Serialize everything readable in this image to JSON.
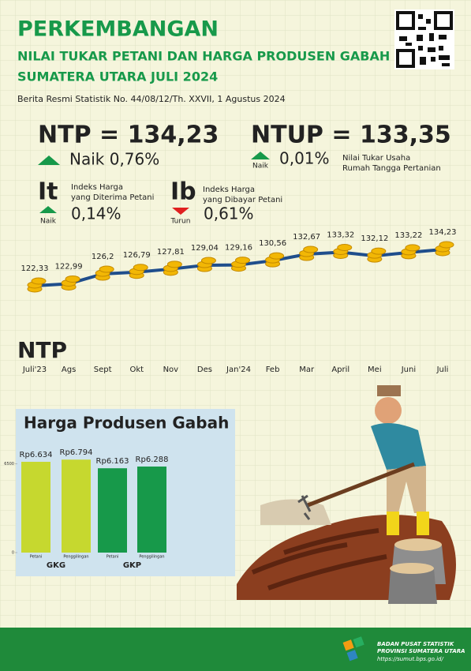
{
  "header": {
    "title": "PERKEMBANGAN",
    "subtitle1": "NILAI TUKAR PETANI DAN HARGA PRODUSEN GABAH",
    "subtitle2": "SUMATERA UTARA JULI 2024",
    "release": "Berita Resmi Statistik No. 44/08/12/Th. XXVII, 1 Agustus 2024"
  },
  "indicators": {
    "ntp": {
      "label": "NTP = 134,23",
      "change": "Naik 0,76%"
    },
    "ntup": {
      "label": "NTUP = 133,35",
      "direction": "Naik",
      "change": "0,01%",
      "desc": [
        "Nilai Tukar Usaha",
        "Rumah Tangga Pertanian"
      ]
    },
    "it": {
      "label": "It",
      "desc": [
        "Indeks Harga",
        "yang Diterima Petani"
      ],
      "direction": "Naik",
      "change": "0,14%"
    },
    "ib": {
      "label": "Ib",
      "desc": [
        "Indeks Harga",
        "yang Dibayar Petani"
      ],
      "direction": "Turun",
      "change": "0,61%"
    }
  },
  "chart_data": [
    {
      "type": "line",
      "title": "NTP",
      "color": "#1f4e8c",
      "categories": [
        "Juli'23",
        "Ags",
        "Sept",
        "Okt",
        "Nov",
        "Des",
        "Jan'24",
        "Feb",
        "Mar",
        "April",
        "Mei",
        "Juni",
        "Juli"
      ],
      "values": [
        122.33,
        122.99,
        126.2,
        126.79,
        127.81,
        129.04,
        129.16,
        130.56,
        132.67,
        133.32,
        132.12,
        133.22,
        134.23
      ],
      "value_labels": [
        "122,33",
        "122,99",
        "126,2",
        "126,79",
        "127,81",
        "129,04",
        "129,16",
        "130,56",
        "132,67",
        "133,32",
        "132,12",
        "133,22",
        "134,23"
      ]
    },
    {
      "type": "bar",
      "title": "Harga Produsen Gabah",
      "categories": [
        "Petani",
        "Penggilingan",
        "Petani",
        "Penggilingan"
      ],
      "groups": [
        "GKG",
        "GKP"
      ],
      "values": [
        6634,
        6794,
        6163,
        6288
      ],
      "value_labels": [
        "Rp6.634",
        "Rp6.794",
        "Rp6.163",
        "Rp6.288"
      ],
      "colors": [
        "#c6d82f",
        "#c6d82f",
        "#17994a",
        "#17994a"
      ],
      "ylim": [
        0,
        7500
      ],
      "yticks": [
        0,
        6500
      ]
    }
  ],
  "footer": {
    "org": "BADAN PUSAT STATISTIK",
    "province": "PROVINSI SUMATERA UTARA",
    "url": "https://sumut.bps.go.id/"
  }
}
